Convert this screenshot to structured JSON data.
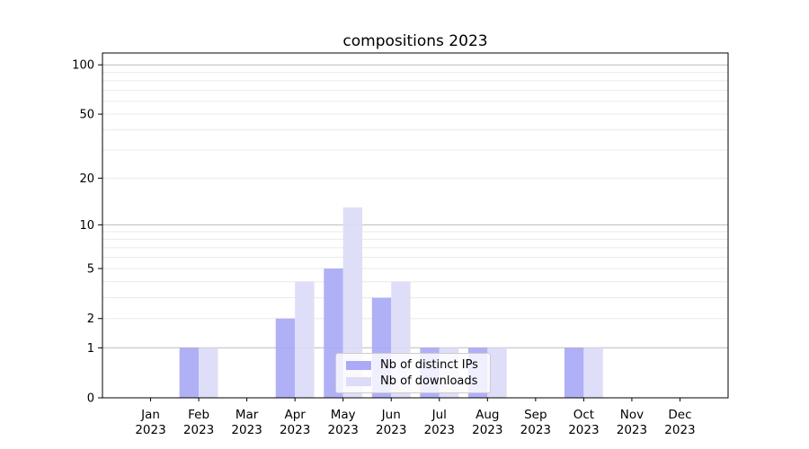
{
  "title": "compositions 2023",
  "colors": {
    "distinct_ips": "#aaaaf6",
    "downloads": "#dcdcf8",
    "grid_major": "#bcbcbc",
    "grid_minor": "#eaeaea",
    "axis": "#000000",
    "text": "#000000",
    "legend_border": "#cccccc"
  },
  "chart_data": {
    "type": "bar",
    "title": "compositions 2023",
    "categories": [
      "Jan",
      "Feb",
      "Mar",
      "Apr",
      "May",
      "Jun",
      "Jul",
      "Aug",
      "Sep",
      "Oct",
      "Nov",
      "Dec"
    ],
    "year_label": "2023",
    "series": [
      {
        "name": "Nb of distinct IPs",
        "key": "distinct_ips",
        "values": [
          0,
          1,
          0,
          2,
          5,
          3,
          1,
          1,
          0,
          1,
          0,
          0
        ]
      },
      {
        "name": "Nb of downloads",
        "key": "downloads",
        "values": [
          0,
          1,
          0,
          4,
          13,
          4,
          1,
          1,
          0,
          1,
          0,
          0
        ]
      }
    ],
    "yscale": "log1p",
    "ytick_labels": [
      "0",
      "1",
      "2",
      "5",
      "10",
      "20",
      "50",
      "100"
    ],
    "ytick_values": [
      0,
      1,
      2,
      5,
      10,
      20,
      50,
      100
    ],
    "ylim": [
      0,
      120
    ],
    "grid": "horizontal major + log minor",
    "legend_position": "lower center",
    "xlabel": "",
    "ylabel": ""
  }
}
